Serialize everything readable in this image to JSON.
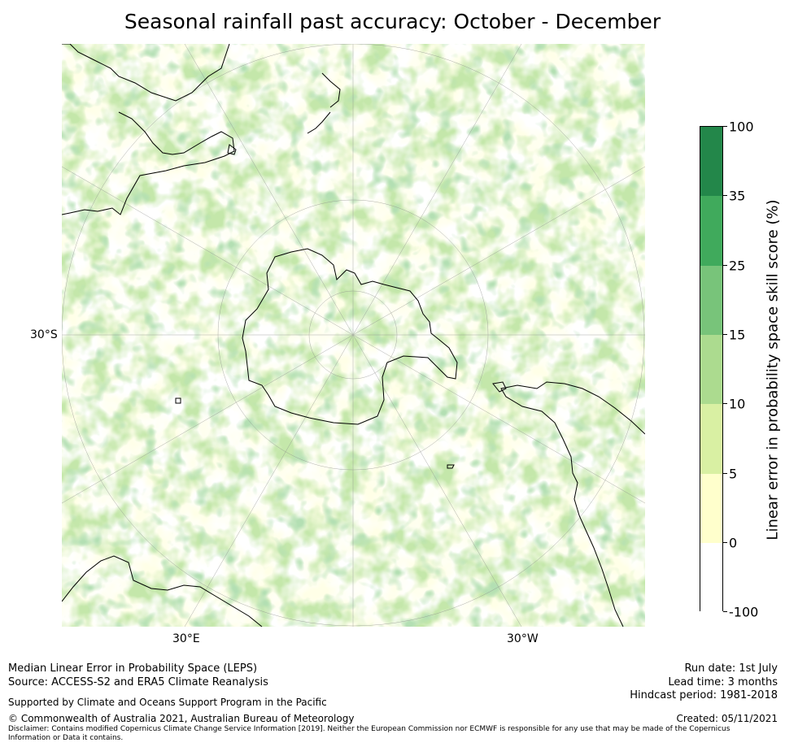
{
  "title": "Seasonal rainfall past accuracy: October - December",
  "map": {
    "projection": "south-polar-stereographic",
    "labels": {
      "left_lat": "30°S",
      "lon_left": "30°E",
      "lon_right": "30°W"
    }
  },
  "colorbar": {
    "label": "Linear error in probability space skill score (%)",
    "ticks": [
      "100",
      "35",
      "25",
      "15",
      "10",
      "5",
      "0",
      "-100"
    ],
    "colors": [
      "#23874a",
      "#40aa5c",
      "#78c47a",
      "#acdb8f",
      "#d9f0a3",
      "#ffffcc",
      "#ffffff"
    ]
  },
  "footer": {
    "line1": "Median Linear Error in Probability Space (LEPS)",
    "line2": "Source: ACCESS-S2 and ERA5 Climate Reanalysis",
    "supported": "Supported by Climate and Oceans Support Program in the Pacific",
    "copyright": "© Commonwealth of Australia 2021, Australian Bureau of Meteorology",
    "disclaimer": "Disclaimer: Contains modified Copernicus Climate Change Service Information [2019]. Neither the European Commission nor ECMWF is responsible for any use that may be made of the Copernicus Information or Data it contains.",
    "run_date": "Run date: 1st July",
    "lead_time": "Lead time: 3 months",
    "hindcast": "Hindcast period: 1981-2018",
    "created": "Created: 05/11/2021"
  }
}
